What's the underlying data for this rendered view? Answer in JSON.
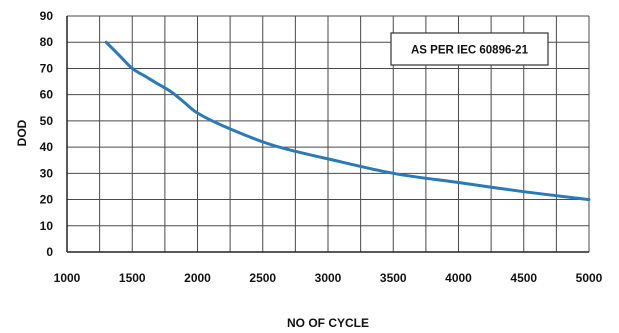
{
  "chart_data": {
    "type": "line",
    "xlabel": "NO OF CYCLE",
    "ylabel": "DOD",
    "xlim": [
      1000,
      5000
    ],
    "ylim": [
      0,
      90
    ],
    "xticks": [
      "1000",
      "1500",
      "2000",
      "2500",
      "3000",
      "3500",
      "4000",
      "4500",
      "5000"
    ],
    "yticks": [
      "0",
      "10",
      "20",
      "30",
      "40",
      "50",
      "60",
      "70",
      "80",
      "90"
    ],
    "grid": true,
    "line_color": "#2a7ab8",
    "annotation": "AS PER IEC 60896-21",
    "series": [
      {
        "x": [
          1300,
          1400,
          1500,
          1600,
          1700,
          1800,
          1900,
          2000,
          2200,
          2500,
          2700,
          3000,
          3500,
          4000,
          4500,
          5000
        ],
        "y": [
          80,
          75,
          70,
          67,
          64,
          61,
          57,
          53,
          48,
          42,
          39,
          35.5,
          30,
          26.5,
          23,
          20
        ]
      }
    ]
  }
}
